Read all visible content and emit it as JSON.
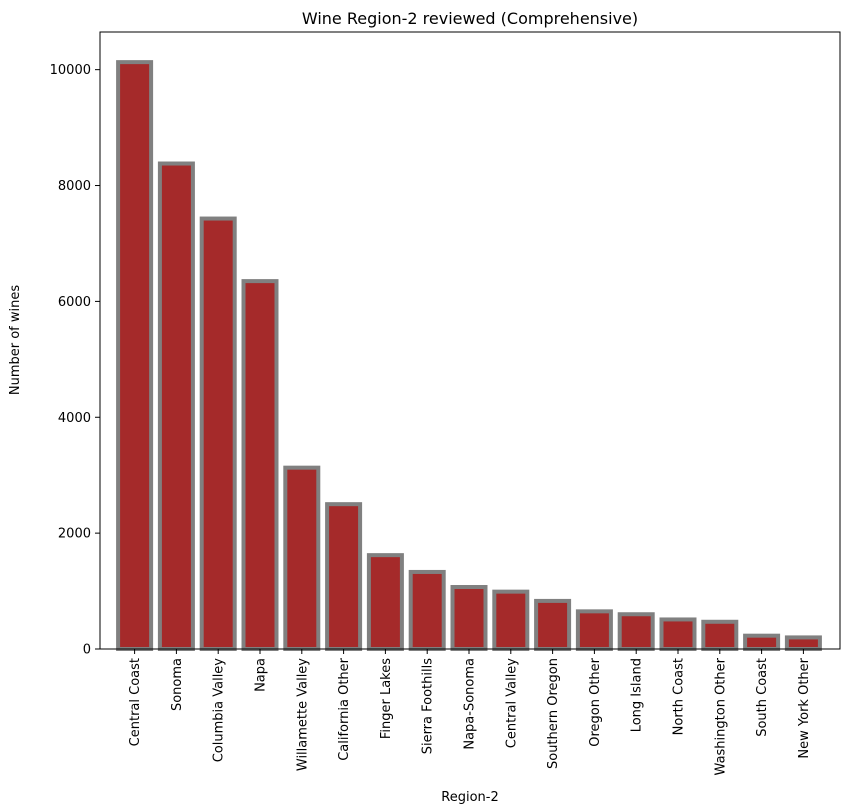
{
  "chart_data": {
    "type": "bar",
    "title": "Wine Region-2 reviewed (Comprehensive)",
    "xlabel": "Region-2",
    "ylabel": "Number of wines",
    "categories": [
      "Central Coast",
      "Sonoma",
      "Columbia Valley",
      "Napa",
      "Willamette Valley",
      "California Other",
      "Finger Lakes",
      "Sierra Foothills",
      "Napa-Sonoma",
      "Central Valley",
      "Southern Oregon",
      "Oregon Other",
      "Long Island",
      "North Coast",
      "Washington Other",
      "South Coast",
      "New York Other"
    ],
    "values": [
      10130,
      8380,
      7430,
      6350,
      3130,
      2500,
      1620,
      1330,
      1070,
      990,
      830,
      650,
      600,
      510,
      470,
      230,
      200
    ],
    "ylim": [
      0,
      10650
    ],
    "yticks": [
      0,
      2000,
      4000,
      6000,
      8000,
      10000
    ],
    "grid": false,
    "legend": "none",
    "colors": {
      "bar_fill": "#a52a2a",
      "bar_edge": "#808080"
    }
  }
}
